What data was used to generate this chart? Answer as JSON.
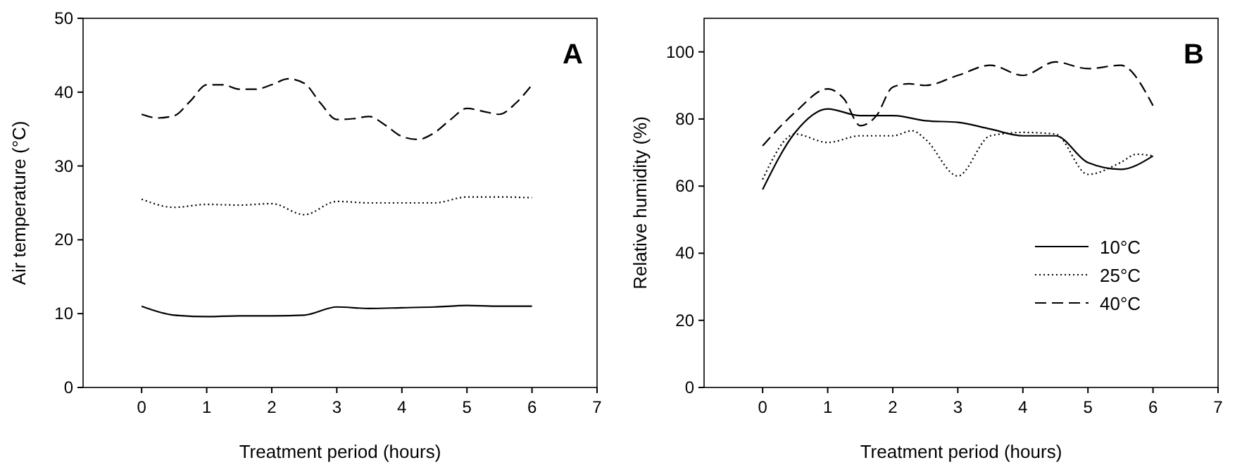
{
  "chart_data": [
    {
      "type": "line",
      "title": "A",
      "xlabel": "Treatment period (hours)",
      "ylabel": "Air temperature (°C)",
      "xlim": [
        -0.9,
        7
      ],
      "xticks": [
        0,
        1,
        2,
        3,
        4,
        5,
        6,
        7
      ],
      "ylim": [
        0,
        50
      ],
      "yticks": [
        0,
        10,
        20,
        30,
        40,
        50
      ],
      "grid": false,
      "legend": false,
      "marker": "none",
      "series": [
        {
          "color": "#000000",
          "line_style": "solid",
          "x": [
            0,
            0.5,
            1,
            1.5,
            2,
            2.5,
            3,
            3.5,
            4,
            4.5,
            5,
            5.5,
            6
          ],
          "values": [
            11,
            9.8,
            9.6,
            9.7,
            9.7,
            9.8,
            10.9,
            10.7,
            10.8,
            10.9,
            11.1,
            11,
            11
          ]
        },
        {
          "color": "#000000",
          "line_style": "dotted",
          "x": [
            0,
            0.5,
            1,
            1.5,
            2,
            2.5,
            3,
            3.5,
            4,
            4.5,
            5,
            5.5,
            6
          ],
          "values": [
            25.5,
            24.4,
            24.8,
            24.7,
            24.9,
            23.4,
            25.2,
            25,
            25,
            25,
            25.8,
            25.8,
            25.7
          ]
        },
        {
          "color": "#000000",
          "line_style": "dashed",
          "x": [
            0,
            0.25,
            0.5,
            0.75,
            1,
            1.25,
            1.5,
            1.75,
            2,
            2.25,
            2.5,
            2.75,
            3,
            3.25,
            3.5,
            3.75,
            4,
            4.25,
            4.5,
            4.75,
            5,
            5.25,
            5.5,
            5.75,
            6
          ],
          "values": [
            37,
            36.5,
            36.8,
            38.8,
            41,
            41,
            40.4,
            40.4,
            41,
            41.8,
            41.2,
            38.5,
            36.3,
            36.4,
            36.7,
            35.5,
            34,
            33.6,
            34.5,
            36.3,
            37.8,
            37.4,
            37,
            38.5,
            41
          ]
        }
      ]
    },
    {
      "type": "line",
      "title": "B",
      "xlabel": "Treatment period (hours)",
      "ylabel": "Relative humidity (%)",
      "xlim": [
        -0.9,
        7
      ],
      "xticks": [
        0,
        1,
        2,
        3,
        4,
        5,
        6,
        7
      ],
      "ylim": [
        0,
        110
      ],
      "yticks": [
        0,
        20,
        40,
        60,
        80,
        100
      ],
      "grid": false,
      "legend": "bottom right",
      "marker": "none",
      "series": [
        {
          "name": "10°C",
          "color": "#000000",
          "line_style": "solid",
          "x": [
            0,
            0.5,
            1,
            1.5,
            2,
            2.5,
            3,
            3.5,
            4,
            4.5,
            5,
            5.5,
            6
          ],
          "values": [
            59,
            76,
            83,
            81,
            81,
            79.5,
            79,
            77,
            75,
            75,
            67,
            65,
            69
          ]
        },
        {
          "name": "25°C",
          "color": "#000000",
          "line_style": "dotted",
          "x": [
            0,
            0.5,
            1,
            1.5,
            2,
            2.3,
            2.5,
            3,
            3.5,
            4,
            4.5,
            5,
            5.5,
            5.75,
            6
          ],
          "values": [
            62,
            75.5,
            73,
            75,
            75,
            76.5,
            74,
            63,
            75,
            76,
            75.5,
            63.5,
            67,
            69.5,
            69
          ]
        },
        {
          "name": "40°C",
          "color": "#000000",
          "line_style": "dashed",
          "x": [
            0,
            0.5,
            1,
            1.25,
            1.5,
            1.75,
            2,
            2.25,
            2.5,
            3,
            3.5,
            4,
            4.5,
            5,
            5.5,
            6
          ],
          "values": [
            72,
            82,
            89,
            86,
            78,
            81,
            89.5,
            90.5,
            90,
            93,
            96,
            93,
            97,
            95,
            96,
            84
          ]
        }
      ]
    }
  ]
}
